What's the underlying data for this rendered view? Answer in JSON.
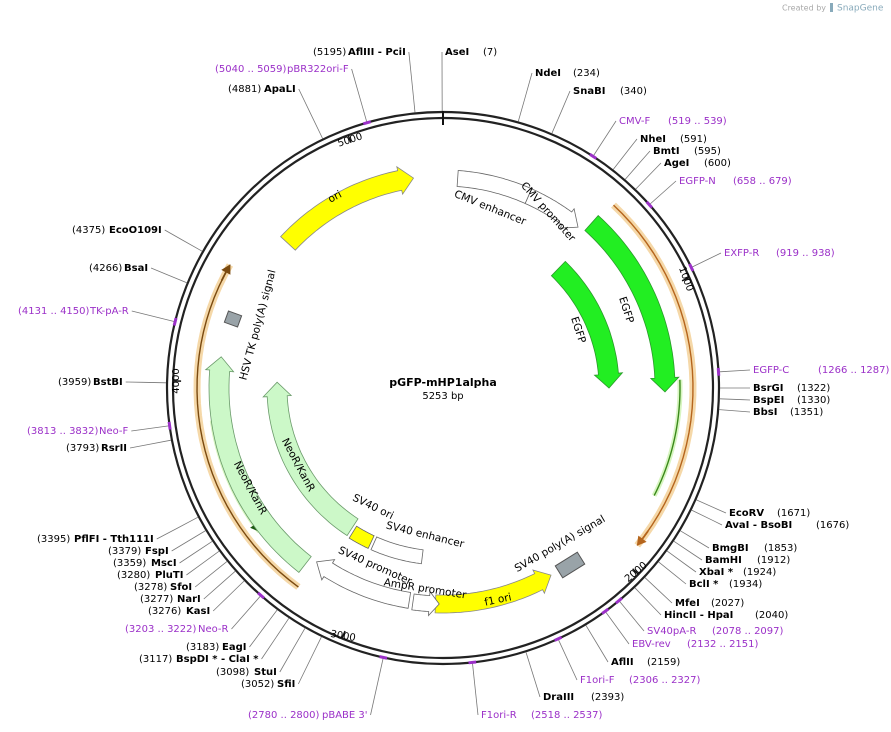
{
  "header": {
    "credit": "Created by",
    "brand": "SnapGene"
  },
  "map": {
    "name": "pGFP-mHP1alpha",
    "length": "5253 bp",
    "ticks": [
      "1000",
      "2000",
      "3000",
      "4000",
      "5000"
    ]
  },
  "sites": [
    {
      "name": "AflIII  -  PciI",
      "position": "(5195)"
    },
    {
      "name": "AseI",
      "position": "(7)"
    },
    {
      "name": "NdeI",
      "position": "(234)"
    },
    {
      "name": "SnaBI",
      "position": "(340)"
    },
    {
      "name": "NheI",
      "position": "(591)"
    },
    {
      "name": "BmtI",
      "position": "(595)"
    },
    {
      "name": "AgeI",
      "position": "(600)"
    },
    {
      "name": "BsrGI",
      "position": "(1322)"
    },
    {
      "name": "BspEI",
      "position": "(1330)"
    },
    {
      "name": "BbsI",
      "position": "(1351)"
    },
    {
      "name": "EcoRV",
      "position": "(1671)"
    },
    {
      "name": "AvaI  -  BsoBI",
      "position": "(1676)"
    },
    {
      "name": "BmgBI",
      "position": "(1853)"
    },
    {
      "name": "BamHI",
      "position": "(1912)"
    },
    {
      "name": "XbaI *",
      "position": "(1924)"
    },
    {
      "name": "BclI *",
      "position": "(1934)"
    },
    {
      "name": "MfeI",
      "position": "(2027)"
    },
    {
      "name": "HincII  -  HpaI",
      "position": "(2040)"
    },
    {
      "name": "AflII",
      "position": "(2159)"
    },
    {
      "name": "DraIII",
      "position": "(2393)"
    },
    {
      "name": "SfiI",
      "position": "(3052)"
    },
    {
      "name": "StuI",
      "position": "(3098)"
    },
    {
      "name": "BspDI *  -  ClaI *",
      "position": "(3117)"
    },
    {
      "name": "EagI",
      "position": "(3183)"
    },
    {
      "name": "KasI",
      "position": "(3276)"
    },
    {
      "name": "NarI",
      "position": "(3277)"
    },
    {
      "name": "SfoI",
      "position": "(3278)"
    },
    {
      "name": "PluTI",
      "position": "(3280)"
    },
    {
      "name": "MscI",
      "position": "(3359)"
    },
    {
      "name": "FspI",
      "position": "(3379)"
    },
    {
      "name": "PflFI  -  Tth111I",
      "position": "(3395)"
    },
    {
      "name": "RsrII",
      "position": "(3793)"
    },
    {
      "name": "BstBI",
      "position": "(3959)"
    },
    {
      "name": "BsaI",
      "position": "(4266)"
    },
    {
      "name": "EcoO109I",
      "position": "(4375)"
    },
    {
      "name": "ApaLI",
      "position": "(4881)"
    }
  ],
  "primers": [
    {
      "name": "CMV-F",
      "range": "(519 .. 539)"
    },
    {
      "name": "EGFP-N",
      "range": "(658 .. 679)"
    },
    {
      "name": "EXFP-R",
      "range": "(919 .. 938)"
    },
    {
      "name": "EGFP-C",
      "range": "(1266 .. 1287)"
    },
    {
      "name": "SV40pA-R",
      "range": "(2078 .. 2097)"
    },
    {
      "name": "EBV-rev",
      "range": "(2132 .. 2151)"
    },
    {
      "name": "F1ori-F",
      "range": "(2306 .. 2327)"
    },
    {
      "name": "F1ori-R",
      "range": "(2518 .. 2537)"
    },
    {
      "name": "pBABE 3'",
      "range": "(2780 .. 2800)"
    },
    {
      "name": "Neo-R",
      "range": "(3203 .. 3222)"
    },
    {
      "name": "Neo-F",
      "range": "(3813 .. 3832)"
    },
    {
      "name": "TK-pA-R",
      "range": "(4131 .. 4150)"
    },
    {
      "name": "pBR322ori-F",
      "range": "(5040 .. 5059)"
    }
  ],
  "features": [
    "ori",
    "CMV enhancer",
    "CMV promoter",
    "EGFP",
    "EGFP",
    "SV40 poly(A) signal",
    "f1 ori",
    "AmpR promoter",
    "SV40 promoter",
    "SV40 enhancer",
    "SV40 ori",
    "NeoR/KanR",
    "NeoR/KanR",
    "HSV TK poly(A) signal"
  ]
}
